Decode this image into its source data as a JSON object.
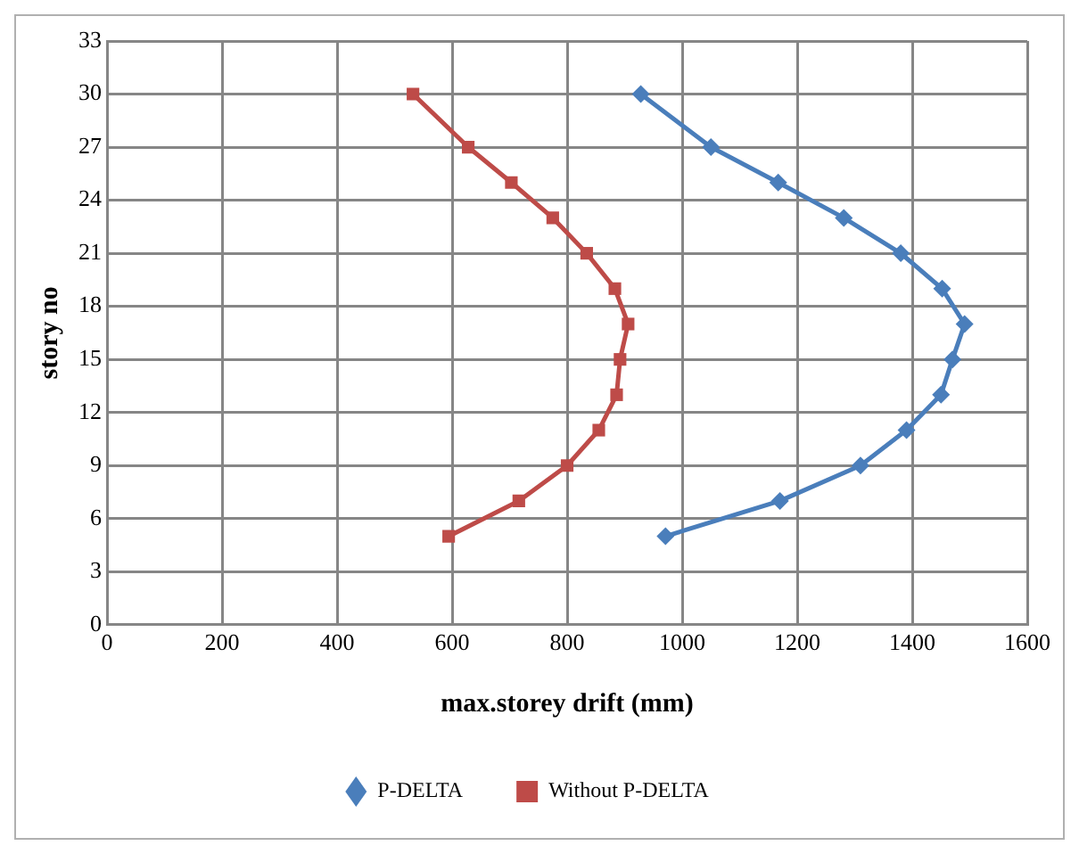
{
  "chart_data": {
    "type": "line",
    "xlabel": "max.storey drift (mm)",
    "ylabel": "story no",
    "xlim": [
      0,
      1600
    ],
    "xticks": [
      0,
      200,
      400,
      600,
      800,
      1000,
      1200,
      1400,
      1600
    ],
    "ylim": [
      0,
      33
    ],
    "yticks": [
      0,
      3,
      6,
      9,
      12,
      15,
      18,
      21,
      24,
      27,
      30,
      33
    ],
    "grid": true,
    "legend": "bottom",
    "line_style": "solid",
    "series": [
      {
        "name": "P-DELTA",
        "color": "#4a7ebb",
        "marker": "diamond",
        "x": [
          928,
          1050,
          1167,
          1281,
          1380,
          1452,
          1491,
          1470,
          1450,
          1390,
          1310,
          1170,
          971
        ],
        "values": [
          30,
          27,
          25,
          23,
          21,
          19,
          17,
          15,
          13,
          11,
          9,
          7,
          5
        ]
      },
      {
        "name": "Without P-DELTA",
        "color": "#be4b48",
        "marker": "square",
        "x": [
          532,
          628,
          703,
          775,
          834,
          883,
          906,
          892,
          886,
          855,
          800,
          716,
          594
        ],
        "values": [
          30,
          27,
          25,
          23,
          21,
          19,
          17,
          15,
          13,
          11,
          9,
          7,
          5
        ]
      }
    ]
  }
}
